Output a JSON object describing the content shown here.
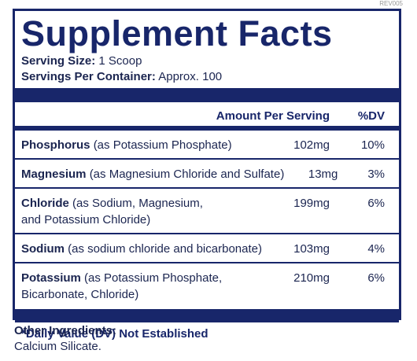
{
  "revision": "REV005",
  "title": "Supplement Facts",
  "serving": [
    {
      "label": "Serving Size:",
      "value": "1 Scoop"
    },
    {
      "label": "Servings Per Container:",
      "value": "Approx. 100"
    }
  ],
  "table": {
    "header": {
      "amount": "Amount Per Serving",
      "dv": "%DV"
    },
    "rows": [
      {
        "name": "Phosphorus",
        "detail": "(as Potassium Phosphate)",
        "amount": "102mg",
        "dv": "10%"
      },
      {
        "name": "Magnesium",
        "detail": "(as Magnesium Chloride and Sulfate)",
        "amount": "13mg",
        "dv": "3%"
      },
      {
        "name": "Chloride",
        "detail": "(as Sodium, Magnesium, and Potassium Chloride)",
        "amount": "199mg",
        "dv": "6%"
      },
      {
        "name": "Sodium",
        "detail": "(as sodium chloride and bicarbonate)",
        "amount": "103mg",
        "dv": "4%"
      },
      {
        "name": "Potassium",
        "detail": "(as Potassium Phosphate, Bicarbonate, Chloride)",
        "amount": "210mg",
        "dv": "6%"
      }
    ]
  },
  "footnote": "*Daily Value (DV) Not Established",
  "other_ingredients": {
    "label": "Other Ingredients:",
    "value": "Calcium Silicate."
  }
}
